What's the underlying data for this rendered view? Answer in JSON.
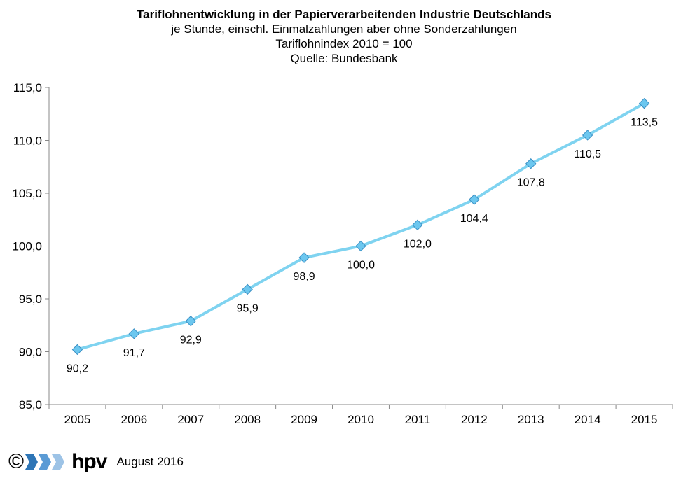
{
  "chart_data": {
    "type": "line",
    "title": "Tariflohnentwicklung  in der Papierverarbeitenden Industrie Deutschlands",
    "subtitles": [
      "je Stunde, einschl. Einmalzahlungen  aber ohne Sonderzahlungen",
      "Tariflohnindex  2010 = 100",
      "Quelle:  Bundesbank"
    ],
    "categories": [
      "2005",
      "2006",
      "2007",
      "2008",
      "2009",
      "2010",
      "2011",
      "2012",
      "2013",
      "2014",
      "2015"
    ],
    "values": [
      90.2,
      91.7,
      92.9,
      95.9,
      98.9,
      100.0,
      102.0,
      104.4,
      107.8,
      110.5,
      113.5
    ],
    "data_labels": [
      "90,2",
      "91,7",
      "92,9",
      "95,9",
      "98,9",
      "100,0",
      "102,0",
      "104,4",
      "107,8",
      "110,5",
      "113,5"
    ],
    "yticks": [
      "85,0",
      "90,0",
      "95,0",
      "100,0",
      "105,0",
      "110,0",
      "115,0"
    ],
    "ylim": [
      85,
      115
    ],
    "xlabel": "",
    "ylabel": "",
    "grid": false,
    "legend": "none",
    "line_color": "#7fd3f0",
    "marker_color": "#6cc7ef",
    "marker_stroke": "#3a8fc4",
    "marker": "diamond"
  },
  "footer": {
    "copyright": "©",
    "brand": "hpv",
    "date": "August 2016",
    "arrow_colors": [
      "#2e75b6",
      "#5b9bd5",
      "#9dc3e6"
    ]
  }
}
